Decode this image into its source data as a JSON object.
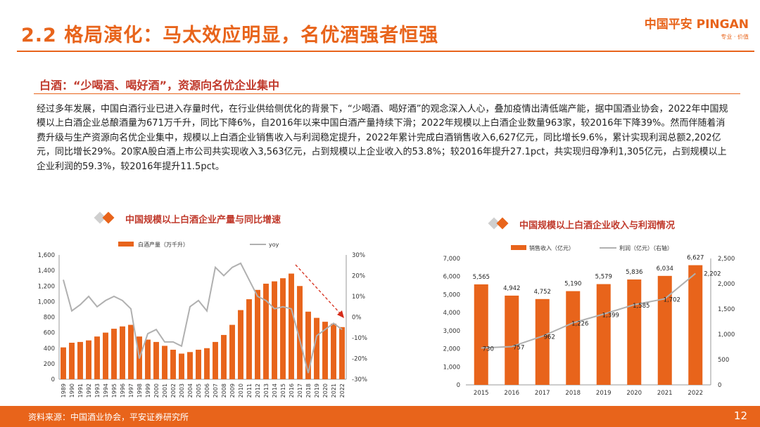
{
  "header": {
    "title": "2.2 格局演化：马太效应明显，名优酒强者恒强",
    "logo_main": "中国平安 PINGAN",
    "logo_sub": "专业 · 价值"
  },
  "section": {
    "subtitle": "白酒：“少喝酒、喝好酒”，资源向名优企业集中",
    "paragraph": "经过多年发展，中国白酒行业已进入存量时代，在行业供给侧优化的背景下，“少喝酒、喝好酒”的观念深入人心，叠加疫情出清低端产能，据中国酒业协会，2022年中国规模以上白酒企业总酿酒量为671万千升，同比下降6%，自2016年以来中国白酒产量持续下滑；2022年规模以上白酒企业数量963家，较2016年下降39%。然而伴随着消费升级与生产资源向名优企业集中，规模以上白酒企业销售收入与利润稳定提升，2022年累计完成白酒销售收入6,627亿元，同比增长9.6%，累计实现利润总额2,202亿元，同比增长29%。20家A股白酒上市公司共实现收入3,563亿元，占到规模以上企业收入的53.8%；较2016年提升27.1pct，共实现归母净利1,305亿元，占到规模以上企业利润的59.3%，较2016年提升11.5pct。"
  },
  "footer": {
    "source": "资料来源：中国酒业协会，平安证券研究所",
    "page": "12"
  },
  "colors": {
    "accent": "#e8641b",
    "grey": "#b0b0b0",
    "title_red": "#c0392b"
  },
  "chart_data": [
    {
      "type": "bar",
      "title": "中国规模以上白酒企业产量与同比增速",
      "categories": [
        "1989",
        "1990",
        "1991",
        "1992",
        "1993",
        "1994",
        "1995",
        "1996",
        "1997",
        "1998",
        "1999",
        "2000",
        "2001",
        "2002",
        "2003",
        "2004",
        "2005",
        "2006",
        "2007",
        "2008",
        "2009",
        "2010",
        "2011",
        "2012",
        "2013",
        "2014",
        "2015",
        "2016",
        "2017",
        "2018",
        "2019",
        "2020",
        "2021",
        "2022"
      ],
      "series": [
        {
          "name": "白酒产量（万千升）",
          "kind": "bar",
          "axis": "left",
          "values": [
            410,
            470,
            480,
            500,
            550,
            600,
            650,
            680,
            700,
            550,
            510,
            480,
            430,
            380,
            330,
            350,
            380,
            400,
            480,
            570,
            700,
            890,
            1030,
            1150,
            1230,
            1260,
            1300,
            1360,
            1200,
            870,
            790,
            740,
            715,
            671
          ]
        },
        {
          "name": "yoy",
          "kind": "line",
          "axis": "right",
          "values": [
            18,
            3,
            6,
            10,
            5,
            8,
            10,
            8,
            4,
            -20,
            -8,
            -6,
            -12,
            -12,
            -14,
            5,
            8,
            3,
            24,
            20,
            24,
            26,
            18,
            10,
            8,
            4,
            5,
            4,
            -11,
            -27,
            -9,
            -6,
            -3,
            -6
          ]
        }
      ],
      "ylim_left": [
        0,
        1600
      ],
      "yticks_left": [
        "0",
        "200",
        "400",
        "600",
        "800",
        "1,000",
        "1,200",
        "1,400",
        "1,600"
      ],
      "ylim_right": [
        -30,
        30
      ],
      "yticks_right": [
        "-30%",
        "-20%",
        "-10%",
        "0%",
        "10%",
        "20%",
        "30%"
      ]
    },
    {
      "type": "bar",
      "title": "中国规模以上白酒企业收入与利润情况",
      "categories": [
        "2015",
        "2016",
        "2017",
        "2018",
        "2019",
        "2020",
        "2021",
        "2022"
      ],
      "series": [
        {
          "name": "销售收入（亿元）",
          "kind": "bar",
          "axis": "left",
          "values": [
            5565,
            4942,
            4752,
            5190,
            5579,
            5836,
            6034,
            6627
          ],
          "labels": [
            "5,565",
            "4,942",
            "4,752",
            "5,190",
            "5,579",
            "5,836",
            "6,034",
            "6,627"
          ]
        },
        {
          "name": "利润（亿元）（右轴）",
          "kind": "line",
          "axis": "right",
          "values": [
            730,
            757,
            962,
            1226,
            1399,
            1585,
            1702,
            2202
          ],
          "labels": [
            "730",
            "757",
            "962",
            "1,226",
            "1,399",
            "1,585",
            "1,702",
            "2,202"
          ]
        }
      ],
      "ylim_left": [
        0,
        7000
      ],
      "yticks_left": [
        "0",
        "1,000",
        "2,000",
        "3,000",
        "4,000",
        "5,000",
        "6,000",
        "7,000"
      ],
      "ylim_right": [
        0,
        2500
      ],
      "yticks_right": [
        "0",
        "500",
        "1,000",
        "1,500",
        "2,000",
        "2,500"
      ]
    }
  ]
}
